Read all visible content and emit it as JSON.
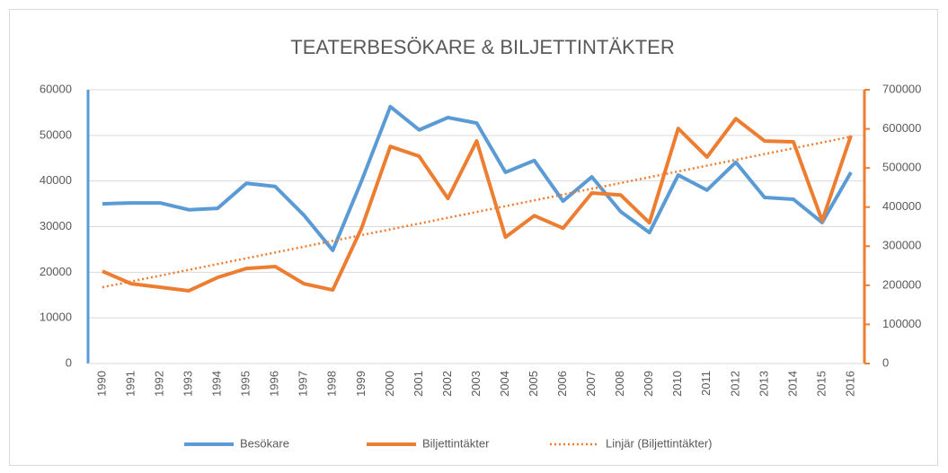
{
  "chart_data": {
    "type": "line",
    "title": "TEATERBESÖKARE & BILJETTINTÄKTER",
    "categories": [
      "1990",
      "1991",
      "1992",
      "1993",
      "1994",
      "1995",
      "1996",
      "1997",
      "1998",
      "1999",
      "2000",
      "2001",
      "2002",
      "2003",
      "2004",
      "2005",
      "2006",
      "2007",
      "2008",
      "2009",
      "2010",
      "2011",
      "2012",
      "2013",
      "2014",
      "2015",
      "2016"
    ],
    "series": [
      {
        "name": "Besökare",
        "color": "#5b9bd5",
        "axis": "y",
        "values": [
          35000,
          35200,
          35200,
          33700,
          34000,
          39500,
          38800,
          32500,
          24800,
          40000,
          56300,
          51200,
          53900,
          52700,
          41900,
          44500,
          35600,
          40900,
          33300,
          28700,
          41300,
          38000,
          44100,
          36400,
          36000,
          30900,
          41900
        ]
      },
      {
        "name": "Biljettintäkter",
        "color": "#ed7d31",
        "axis": "y2",
        "values": [
          236000,
          204000,
          195000,
          186000,
          220000,
          243000,
          248000,
          204000,
          188000,
          346000,
          555000,
          530000,
          422000,
          569000,
          323000,
          378000,
          346000,
          436000,
          431000,
          360000,
          601000,
          528000,
          626000,
          569000,
          567000,
          365000,
          583000
        ]
      }
    ],
    "trendline": {
      "name": "Linjär (Biljettintäkter)",
      "color": "#ed7d31",
      "axis": "y2",
      "x": [
        "1990",
        "2016"
      ],
      "values": [
        195000,
        580000
      ]
    },
    "ylim": [
      0,
      60000
    ],
    "yticks": [
      0,
      10000,
      20000,
      30000,
      40000,
      50000,
      60000
    ],
    "y2lim": [
      0,
      700000
    ],
    "y2ticks": [
      0,
      100000,
      200000,
      300000,
      400000,
      500000,
      600000,
      700000
    ],
    "grid": true,
    "legend": "bottom"
  }
}
